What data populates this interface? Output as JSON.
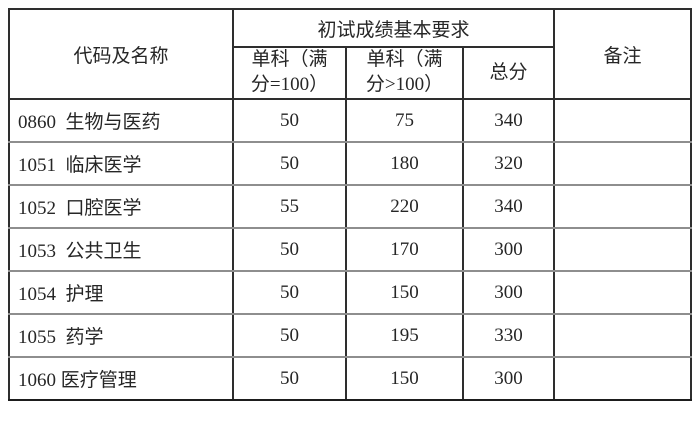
{
  "colors": {
    "background": "#ffffff",
    "text": "#262626",
    "grid_dark": "#2e2e2e",
    "grid_gray": "#8e8e8e"
  },
  "table": {
    "header": {
      "code_name": "代码及名称",
      "group_title": "初试成绩基本要求",
      "single_max100": "单科（满\n分=100）",
      "single_gt100": "单科（满\n分>100）",
      "total": "总分",
      "remarks": "备注"
    },
    "rows": [
      {
        "code_name": "0860  生物与医药",
        "single_max100": "50",
        "single_gt100": "75",
        "total": "340",
        "remarks": ""
      },
      {
        "code_name": "1051  临床医学",
        "single_max100": "50",
        "single_gt100": "180",
        "total": "320",
        "remarks": ""
      },
      {
        "code_name": "1052  口腔医学",
        "single_max100": "55",
        "single_gt100": "220",
        "total": "340",
        "remarks": ""
      },
      {
        "code_name": "1053  公共卫生",
        "single_max100": "50",
        "single_gt100": "170",
        "total": "300",
        "remarks": ""
      },
      {
        "code_name": "1054  护理",
        "single_max100": "50",
        "single_gt100": "150",
        "total": "300",
        "remarks": ""
      },
      {
        "code_name": "1055  药学",
        "single_max100": "50",
        "single_gt100": "195",
        "total": "330",
        "remarks": ""
      },
      {
        "code_name": "1060 医疗管理",
        "single_max100": "50",
        "single_gt100": "150",
        "total": "300",
        "remarks": ""
      }
    ]
  }
}
